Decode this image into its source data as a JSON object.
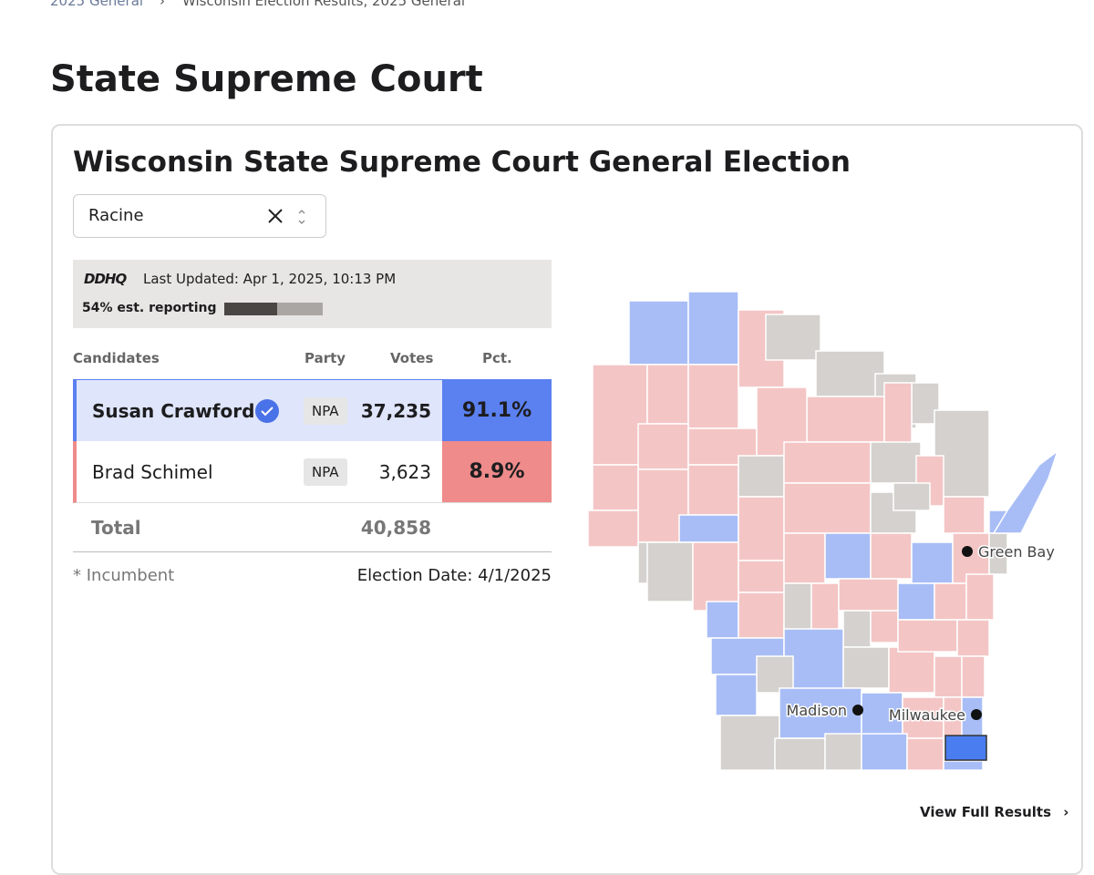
{
  "breadcrumb": [
    "2025 General",
    "Wisconsin Election Results, 2025 General"
  ],
  "page_title": "State Supreme Court",
  "card": {
    "title": "Wisconsin State Supreme Court General Election",
    "select": "Racine",
    "source": "DDHQ",
    "last_updated": "Last Updated: Apr 1, 2025, 10:13 PM",
    "reporting": {
      "label": "54% est. reporting",
      "value": 54
    },
    "table": {
      "headers": [
        "Candidates",
        "Party",
        "Votes",
        "Pct."
      ],
      "rows": [
        {
          "name": "Susan Crawford",
          "party": "NPA",
          "votes": "37,235",
          "pct": "91.1%",
          "winner": true,
          "color": "#5b80f0"
        },
        {
          "name": "Brad Schimel",
          "party": "NPA",
          "votes": "3,623",
          "pct": "8.9%",
          "winner": false,
          "color": "#ef8b8b"
        }
      ],
      "total": {
        "label": "Total",
        "votes": "40,858"
      }
    },
    "footnote": "* Incumbent",
    "election_date": "Election Date: 4/1/2025",
    "map": {
      "cities": [
        "Green Bay",
        "Madison",
        "Milwaukee"
      ]
    },
    "link": "View Full Results"
  }
}
